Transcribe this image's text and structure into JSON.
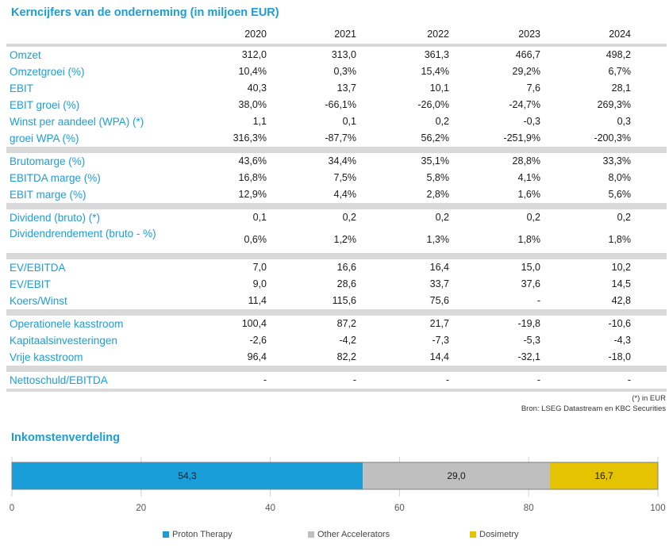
{
  "table": {
    "title": "Kerncijfers van de onderneming (in miljoen EUR)",
    "years": [
      "2020",
      "2021",
      "2022",
      "2023",
      "2024"
    ],
    "groups": [
      [
        {
          "label": "Omzet",
          "values": [
            "312,0",
            "313,0",
            "361,3",
            "466,7",
            "498,2"
          ]
        },
        {
          "label": "Omzetgroei (%)",
          "values": [
            "10,4%",
            "0,3%",
            "15,4%",
            "29,2%",
            "6,7%"
          ]
        },
        {
          "label": "EBIT",
          "values": [
            "40,3",
            "13,7",
            "10,1",
            "7,6",
            "28,1"
          ]
        },
        {
          "label": "EBIT groei (%)",
          "values": [
            "38,0%",
            "-66,1%",
            "-26,0%",
            "-24,7%",
            "269,3%"
          ]
        },
        {
          "label": "Winst per aandeel (WPA) (*)",
          "values": [
            "1,1",
            "0,1",
            "0,2",
            "-0,3",
            "0,3"
          ]
        },
        {
          "label": "groei WPA (%)",
          "values": [
            "316,3%",
            "-87,7%",
            "56,2%",
            "-251,9%",
            "-200,3%"
          ]
        }
      ],
      [
        {
          "label": "Brutomarge (%)",
          "values": [
            "43,6%",
            "34,4%",
            "35,1%",
            "28,8%",
            "33,3%"
          ]
        },
        {
          "label": "EBITDA marge (%)",
          "values": [
            "16,8%",
            "7,5%",
            "5,8%",
            "4,1%",
            "8,0%"
          ]
        },
        {
          "label": "EBIT marge (%)",
          "values": [
            "12,9%",
            "4,4%",
            "2,8%",
            "1,6%",
            "5,6%"
          ]
        }
      ],
      [
        {
          "label": "Dividend (bruto) (*)",
          "values": [
            "0,1",
            "0,2",
            "0,2",
            "0,2",
            "0,2"
          ]
        },
        {
          "label": "Dividendrendement (bruto - %)",
          "values": [
            "0,6%",
            "1,2%",
            "1,3%",
            "1,8%",
            "1,8%"
          ]
        }
      ],
      [
        {
          "label": "EV/EBITDA",
          "values": [
            "7,0",
            "16,6",
            "16,4",
            "15,0",
            "10,2"
          ]
        },
        {
          "label": "EV/EBIT",
          "values": [
            "9,0",
            "28,6",
            "33,7",
            "37,6",
            "14,5"
          ]
        },
        {
          "label": "Koers/Winst",
          "values": [
            "11,4",
            "115,6",
            "75,6",
            "-",
            "42,8"
          ]
        }
      ],
      [
        {
          "label": "Operationele kasstroom",
          "values": [
            "100,4",
            "87,2",
            "21,7",
            "-19,8",
            "-10,6"
          ]
        },
        {
          "label": "Kapitaalsinvesteringen",
          "values": [
            "-2,6",
            "-4,2",
            "-7,3",
            "-5,3",
            "-4,3"
          ]
        },
        {
          "label": "Vrije kasstroom",
          "values": [
            "96,4",
            "82,2",
            "14,4",
            "-32,1",
            "-18,0"
          ]
        }
      ],
      [
        {
          "label": "Nettoschuld/EBITDA",
          "values": [
            "-",
            "-",
            "-",
            "-",
            "-"
          ]
        }
      ]
    ],
    "footnote": "(*) in EUR",
    "source": "Bron: LSEG Datastream en KBC Securities"
  },
  "chart_data": {
    "type": "bar",
    "orientation": "horizontal",
    "stacked": true,
    "title": "Inkomstenverdeling",
    "xlim": [
      0,
      100
    ],
    "xticks": [
      "0",
      "20",
      "40",
      "60",
      "80",
      "100"
    ],
    "series": [
      {
        "name": "Proton Therapy",
        "values": [
          54.3
        ],
        "label": "54,3",
        "color": "#1a9ed9"
      },
      {
        "name": "Other Accelerators",
        "values": [
          29.0
        ],
        "label": "29,0",
        "color": "#bfbfbf"
      },
      {
        "name": "Dosimetry",
        "values": [
          16.7
        ],
        "label": "16,7",
        "color": "#e6c300"
      }
    ],
    "grid": true,
    "legend_position": "bottom"
  }
}
